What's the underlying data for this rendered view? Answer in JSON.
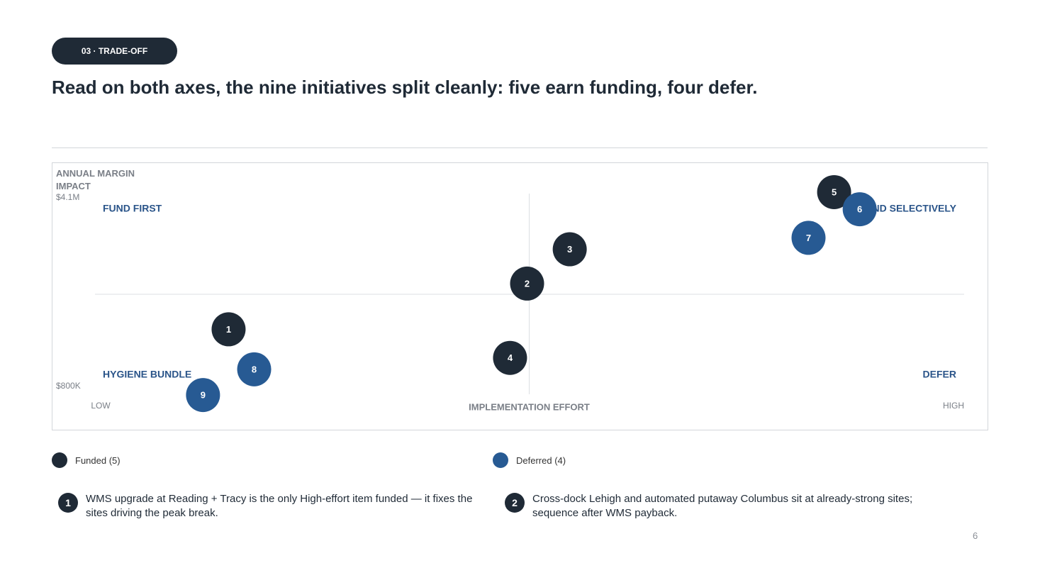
{
  "header": {
    "tag": "03 · TRADE-OFF",
    "title": "Read on both axes, the nine initiatives split cleanly: five earn funding, four defer."
  },
  "chart_data": {
    "type": "scatter",
    "y_label": "ANNUAL MARGIN IMPACT",
    "x_label": "IMPLEMENTATION EFFORT",
    "xlim": [
      0,
      10
    ],
    "xticks": [
      {
        "value": 0,
        "label": "LOW"
      },
      {
        "value": 10,
        "label": "HIGH"
      }
    ],
    "ylim": [
      0.8,
      4.1
    ],
    "yticks": [
      {
        "value": 4.1,
        "label": "$4.1M"
      },
      {
        "value": 0.8,
        "label": "$800K"
      }
    ],
    "quadrants": {
      "top_left": "FUND FIRST",
      "top_right": "FUND SELECTIVELY",
      "bottom_left": "HYGIENE BUNDLE",
      "bottom_right": "DEFER"
    },
    "series": [
      {
        "name": "Funded (5)",
        "color": "#1f2a36",
        "labels": [
          "1",
          "2",
          "3",
          "4",
          "5"
        ],
        "x": [
          1.5,
          5.0,
          5.5,
          4.8,
          8.6
        ],
        "values": [
          1.8,
          2.6,
          3.2,
          1.3,
          4.2
        ]
      },
      {
        "name": "Deferred (4)",
        "color": "#275a93",
        "labels": [
          "6",
          "7",
          "8",
          "9"
        ],
        "x": [
          8.9,
          8.3,
          1.8,
          1.2
        ],
        "values": [
          3.9,
          3.4,
          1.1,
          0.65
        ]
      }
    ]
  },
  "notes": [
    {
      "badge": "1",
      "text": "WMS upgrade at Reading + Tracy is the only High-effort item funded — it fixes the sites driving the peak break."
    },
    {
      "badge": "2",
      "text": "Cross-dock Lehigh and automated putaway Columbus sit at already-strong sites; sequence after WMS payback."
    }
  ],
  "page_number": "6"
}
